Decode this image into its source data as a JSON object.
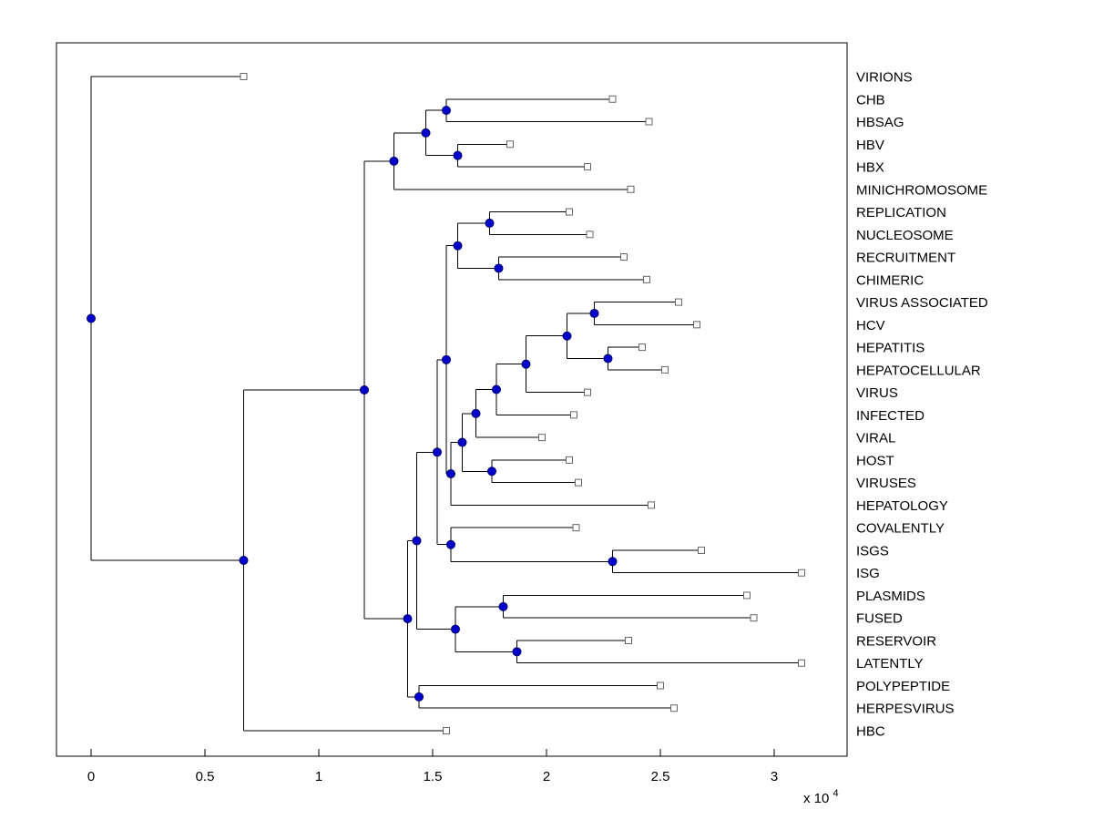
{
  "figure": {
    "background": "#ffffff",
    "plot_background": "#ffffff",
    "box_color": "#000000",
    "line_color": "#000000",
    "node_marker": {
      "shape": "circle",
      "fill": "#0000cc",
      "stroke": "#000066"
    },
    "leaf_marker": {
      "shape": "square",
      "fill": "#ffffff",
      "stroke": "#666666"
    }
  },
  "chart_data": {
    "type": "dendrogram",
    "subtype": "phylogenetic-tree",
    "orientation": "left-to-right",
    "title": "",
    "xlabel": "",
    "ylabel": "",
    "grid": false,
    "legend": null,
    "x_axis": {
      "ticks": [
        0,
        0.5,
        1,
        1.5,
        2,
        2.5,
        3
      ],
      "tick_labels": [
        "0",
        "0.5",
        "1",
        "1.5",
        "2",
        "2.5",
        "3"
      ],
      "multiplier": "x 10",
      "multiplier_exponent": "4",
      "range": [
        -0.152,
        3.32
      ],
      "units": "10^4"
    },
    "leaf_order": [
      "VIRIONS",
      "CHB",
      "HBSAG",
      "HBV",
      "HBX",
      "MINICHROMOSOME",
      "REPLICATION",
      "NUCLEOSOME",
      "RECRUITMENT",
      "CHIMERIC",
      "VIRUS ASSOCIATED",
      "HCV",
      "HEPATITIS",
      "HEPATOCELLULAR",
      "VIRUS",
      "INFECTED",
      "VIRAL",
      "HOST",
      "VIRUSES",
      "HEPATOLOGY",
      "COVALENTLY",
      "ISGS",
      "ISG",
      "PLASMIDS",
      "FUSED",
      "RESERVOIR",
      "LATENTLY",
      "POLYPEPTIDE",
      "HERPESVIRUS",
      "HBC"
    ],
    "tree": {
      "x": 0.0,
      "children": [
        {
          "name": "VIRIONS",
          "x": 0.67
        },
        {
          "x": 0.67,
          "children": [
            {
              "x": 1.2,
              "children": [
                {
                  "x": 1.33,
                  "children": [
                    {
                      "x": 1.47,
                      "children": [
                        {
                          "x": 1.56,
                          "children": [
                            {
                              "name": "CHB",
                              "x": 2.29
                            },
                            {
                              "name": "HBSAG",
                              "x": 2.45
                            }
                          ]
                        },
                        {
                          "x": 1.61,
                          "children": [
                            {
                              "name": "HBV",
                              "x": 1.84
                            },
                            {
                              "name": "HBX",
                              "x": 2.18
                            }
                          ]
                        }
                      ]
                    },
                    {
                      "name": "MINICHROMOSOME",
                      "x": 2.37
                    }
                  ]
                },
                {
                  "x": 1.39,
                  "children": [
                    {
                      "x": 1.43,
                      "children": [
                        {
                          "x": 1.52,
                          "children": [
                            {
                              "x": 1.56,
                              "children": [
                                {
                                  "x": 1.61,
                                  "children": [
                                    {
                                      "x": 1.75,
                                      "children": [
                                        {
                                          "name": "REPLICATION",
                                          "x": 2.1
                                        },
                                        {
                                          "name": "NUCLEOSOME",
                                          "x": 2.19
                                        }
                                      ]
                                    },
                                    {
                                      "x": 1.79,
                                      "children": [
                                        {
                                          "name": "RECRUITMENT",
                                          "x": 2.34
                                        },
                                        {
                                          "name": "CHIMERIC",
                                          "x": 2.44
                                        }
                                      ]
                                    }
                                  ]
                                },
                                {
                                  "x": 1.58,
                                  "children": [
                                    {
                                      "x": 1.63,
                                      "children": [
                                        {
                                          "x": 1.69,
                                          "children": [
                                            {
                                              "x": 1.78,
                                              "children": [
                                                {
                                                  "x": 1.91,
                                                  "children": [
                                                    {
                                                      "x": 2.09,
                                                      "children": [
                                                        {
                                                          "x": 2.21,
                                                          "children": [
                                                            {
                                                              "name": "VIRUS ASSOCIATED",
                                                              "x": 2.58
                                                            },
                                                            {
                                                              "name": "HCV",
                                                              "x": 2.66
                                                            }
                                                          ]
                                                        },
                                                        {
                                                          "x": 2.27,
                                                          "children": [
                                                            {
                                                              "name": "HEPATITIS",
                                                              "x": 2.42
                                                            },
                                                            {
                                                              "name": "HEPATOCELLULAR",
                                                              "x": 2.52
                                                            }
                                                          ]
                                                        }
                                                      ]
                                                    },
                                                    {
                                                      "name": "VIRUS",
                                                      "x": 2.18
                                                    }
                                                  ]
                                                },
                                                {
                                                  "name": "INFECTED",
                                                  "x": 2.12
                                                }
                                              ]
                                            },
                                            {
                                              "name": "VIRAL",
                                              "x": 1.98
                                            }
                                          ]
                                        },
                                        {
                                          "x": 1.76,
                                          "children": [
                                            {
                                              "name": "HOST",
                                              "x": 2.1
                                            },
                                            {
                                              "name": "VIRUSES",
                                              "x": 2.14
                                            }
                                          ]
                                        }
                                      ]
                                    },
                                    {
                                      "name": "HEPATOLOGY",
                                      "x": 2.46
                                    }
                                  ]
                                }
                              ]
                            },
                            {
                              "x": 1.58,
                              "children": [
                                {
                                  "name": "COVALENTLY",
                                  "x": 2.13
                                },
                                {
                                  "x": 2.29,
                                  "children": [
                                    {
                                      "name": "ISGS",
                                      "x": 2.68
                                    },
                                    {
                                      "name": "ISG",
                                      "x": 3.12
                                    }
                                  ]
                                }
                              ]
                            }
                          ]
                        },
                        {
                          "x": 1.6,
                          "children": [
                            {
                              "x": 1.81,
                              "children": [
                                {
                                  "name": "PLASMIDS",
                                  "x": 2.88
                                },
                                {
                                  "name": "FUSED",
                                  "x": 2.91
                                }
                              ]
                            },
                            {
                              "x": 1.87,
                              "children": [
                                {
                                  "name": "RESERVOIR",
                                  "x": 2.36
                                },
                                {
                                  "name": "LATENTLY",
                                  "x": 3.12
                                }
                              ]
                            }
                          ]
                        }
                      ]
                    },
                    {
                      "x": 1.44,
                      "children": [
                        {
                          "name": "POLYPEPTIDE",
                          "x": 2.5
                        },
                        {
                          "name": "HERPESVIRUS",
                          "x": 2.56
                        }
                      ]
                    }
                  ]
                }
              ]
            },
            {
              "name": "HBC",
              "x": 1.56
            }
          ]
        }
      ]
    }
  }
}
